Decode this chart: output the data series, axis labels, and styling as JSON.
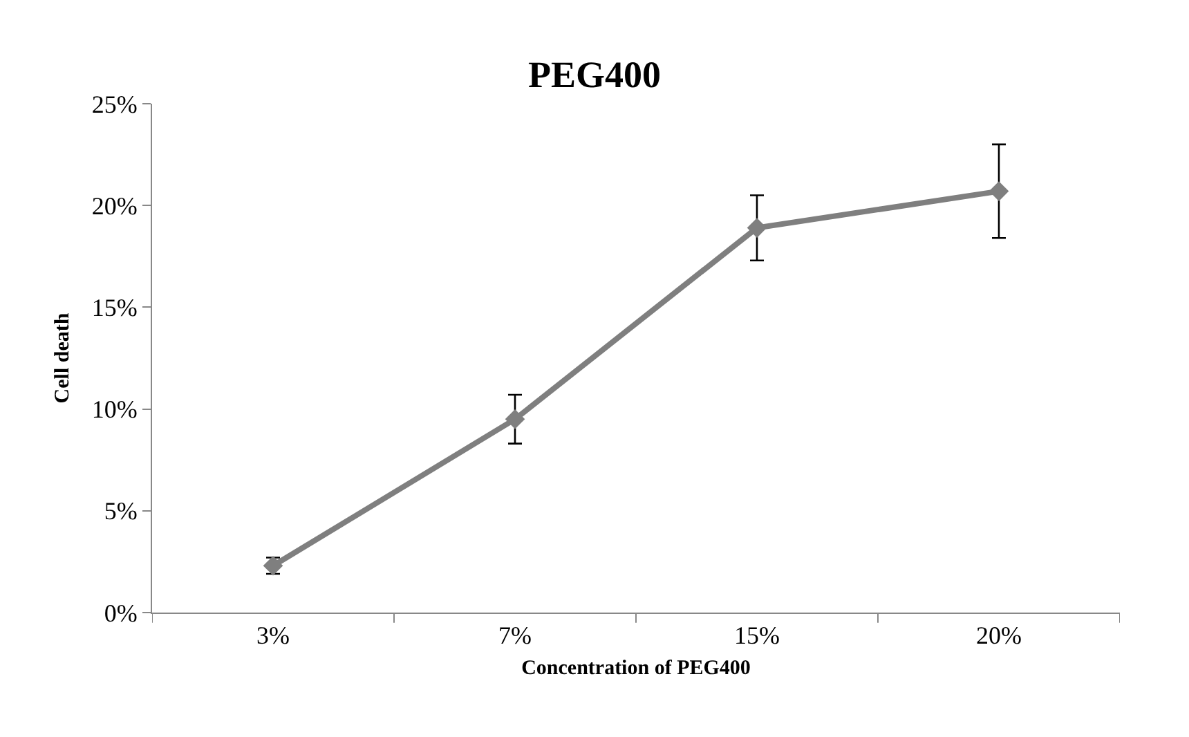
{
  "chart_data": {
    "type": "line",
    "title": "PEG400",
    "xlabel": "Concentration of PEG400",
    "ylabel": "Cell death",
    "categories": [
      "3%",
      "7%",
      "15%",
      "20%"
    ],
    "series": [
      {
        "color": "#7f7f7f",
        "values": [
          2.3,
          9.5,
          18.9,
          20.7
        ],
        "errors": [
          0.4,
          1.2,
          1.6,
          2.3
        ]
      }
    ],
    "ylim": [
      0,
      25
    ],
    "yticks": [
      {
        "value": 0,
        "label": "0%"
      },
      {
        "value": 5,
        "label": "5%"
      },
      {
        "value": 10,
        "label": "10%"
      },
      {
        "value": 15,
        "label": "15%"
      },
      {
        "value": 20,
        "label": "20%"
      },
      {
        "value": 25,
        "label": "25%"
      }
    ],
    "marker": "diamond",
    "line_style": "solid"
  }
}
